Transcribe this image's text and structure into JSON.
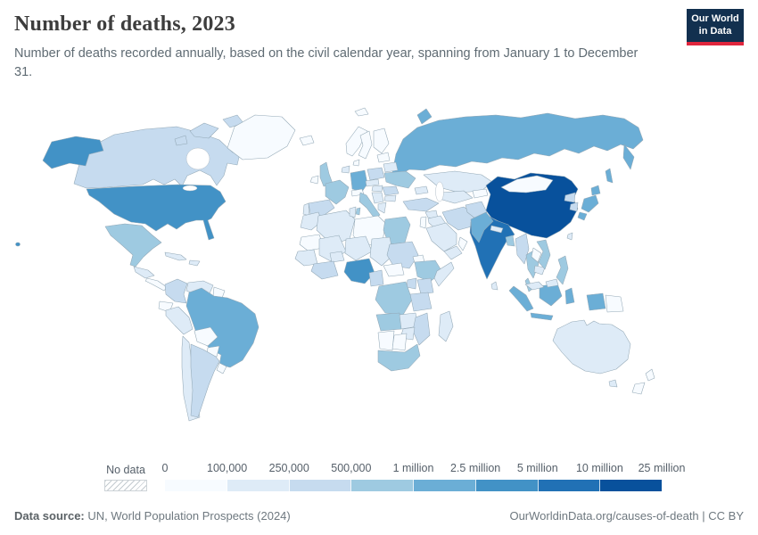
{
  "header": {
    "title": "Number of deaths, 2023",
    "subtitle": "Number of deaths recorded annually, based on the civil calendar year, spanning from January 1 to December 31."
  },
  "logo": {
    "line1": "Our World",
    "line2": "in Data",
    "bg_color": "#12304f",
    "accent_color": "#e0263d"
  },
  "legend": {
    "no_data_label": "No data",
    "tick_labels": [
      "0",
      "100,000",
      "250,000",
      "500,000",
      "1 million",
      "2.5 million",
      "5 million",
      "10 million",
      "25 million"
    ]
  },
  "footer": {
    "source_label": "Data source:",
    "source_value": " UN, World Population Prospects (2024)",
    "credit": "OurWorldinData.org/causes-of-death | CC BY"
  },
  "chart_data": {
    "type": "choropleth_map",
    "title": "Number of deaths, 2023",
    "unit": "deaths per year",
    "bin_edges": [
      "0",
      "100,000",
      "250,000",
      "500,000",
      "1 million",
      "2.5 million",
      "5 million",
      "10 million",
      "25 million"
    ],
    "colors": [
      "#f7fbff",
      "#deebf7",
      "#c6dbef",
      "#9ecae1",
      "#6baed6",
      "#4292c6",
      "#2171b5",
      "#08519c"
    ],
    "border_color": "#93a8b6",
    "no_data_style": "white with gray diagonal hatch",
    "countries": {
      "united-states": {
        "name": "United States",
        "bin": 5
      },
      "canada": {
        "name": "Canada",
        "bin": 2
      },
      "greenland": {
        "name": "Greenland",
        "bin": 0
      },
      "mexico": {
        "name": "Mexico",
        "bin": 3
      },
      "guatemala": {
        "name": "Guatemala",
        "bin": 1
      },
      "central-america": {
        "name": "Central America",
        "bin": 0
      },
      "cuba": {
        "name": "Cuba",
        "bin": 1
      },
      "hispaniola": {
        "name": "Haiti & Dominican Republic",
        "bin": 1
      },
      "colombia": {
        "name": "Colombia",
        "bin": 2
      },
      "venezuela": {
        "name": "Venezuela",
        "bin": 1
      },
      "guyana": {
        "name": "Guyanas",
        "bin": 0
      },
      "ecuador": {
        "name": "Ecuador",
        "bin": 0
      },
      "peru": {
        "name": "Peru",
        "bin": 1
      },
      "brazil": {
        "name": "Brazil",
        "bin": 4
      },
      "bolivia": {
        "name": "Bolivia",
        "bin": 0
      },
      "paraguay": {
        "name": "Paraguay",
        "bin": 0
      },
      "chile": {
        "name": "Chile",
        "bin": 1
      },
      "argentina": {
        "name": "Argentina",
        "bin": 2
      },
      "uruguay": {
        "name": "Uruguay",
        "bin": 0
      },
      "iceland": {
        "name": "Iceland",
        "bin": 0
      },
      "svalbard": {
        "name": "Svalbard",
        "bin": 0
      },
      "united-kingdom": {
        "name": "United Kingdom",
        "bin": 3
      },
      "ireland": {
        "name": "Ireland",
        "bin": 0
      },
      "norway": {
        "name": "Norway",
        "bin": 0
      },
      "sweden": {
        "name": "Sweden",
        "bin": 0
      },
      "finland": {
        "name": "Finland",
        "bin": 0
      },
      "denmark": {
        "name": "Denmark",
        "bin": 0
      },
      "benelux": {
        "name": "Netherlands & Belgium",
        "bin": 1
      },
      "germany": {
        "name": "Germany",
        "bin": 4
      },
      "france": {
        "name": "France",
        "bin": 3
      },
      "spain": {
        "name": "Spain",
        "bin": 2
      },
      "portugal": {
        "name": "Portugal",
        "bin": 1
      },
      "italy": {
        "name": "Italy",
        "bin": 3
      },
      "switzerland-austria": {
        "name": "Switzerland & Austria",
        "bin": 0
      },
      "poland": {
        "name": "Poland",
        "bin": 2
      },
      "czechia-slovakia": {
        "name": "Czechia & Slovakia",
        "bin": 1
      },
      "hungary": {
        "name": "Hungary",
        "bin": 1
      },
      "balkans": {
        "name": "Balkans",
        "bin": 1
      },
      "greece": {
        "name": "Greece",
        "bin": 1
      },
      "romania": {
        "name": "Romania",
        "bin": 2
      },
      "bulgaria": {
        "name": "Bulgaria",
        "bin": 1
      },
      "ukraine": {
        "name": "Ukraine",
        "bin": 3
      },
      "belarus": {
        "name": "Belarus",
        "bin": 1
      },
      "baltics": {
        "name": "Baltic states",
        "bin": 0
      },
      "russia": {
        "name": "Russia",
        "bin": 4
      },
      "kazakhstan": {
        "name": "Kazakhstan",
        "bin": 1
      },
      "uzbekistan-turkmenistan": {
        "name": "Uzbekistan & Turkmenistan",
        "bin": 1
      },
      "kyrgyzstan-tajikistan": {
        "name": "Kyrgyzstan & Tajikistan",
        "bin": 0
      },
      "caucasus": {
        "name": "Caucasus",
        "bin": 1
      },
      "turkey": {
        "name": "Turkey",
        "bin": 2
      },
      "syria": {
        "name": "Syria",
        "bin": 1
      },
      "iraq": {
        "name": "Iraq",
        "bin": 1
      },
      "israel-jordan": {
        "name": "Israel & Jordan",
        "bin": 0
      },
      "saudi-arabia": {
        "name": "Saudi Arabia",
        "bin": 1
      },
      "yemen": {
        "name": "Yemen",
        "bin": 1
      },
      "oman": {
        "name": "Oman",
        "bin": 0
      },
      "iran": {
        "name": "Iran",
        "bin": 2
      },
      "afghanistan": {
        "name": "Afghanistan",
        "bin": 2
      },
      "pakistan": {
        "name": "Pakistan",
        "bin": 4
      },
      "morocco": {
        "name": "Morocco",
        "bin": 1
      },
      "algeria": {
        "name": "Algeria",
        "bin": 1
      },
      "tunisia": {
        "name": "Tunisia",
        "bin": 1
      },
      "libya": {
        "name": "Libya",
        "bin": 0
      },
      "egypt": {
        "name": "Egypt",
        "bin": 3
      },
      "mauritania": {
        "name": "Mauritania",
        "bin": 0
      },
      "mali": {
        "name": "Mali",
        "bin": 1
      },
      "niger": {
        "name": "Niger",
        "bin": 1
      },
      "chad": {
        "name": "Chad",
        "bin": 1
      },
      "sudan": {
        "name": "Sudan",
        "bin": 2
      },
      "eritrea-djibouti": {
        "name": "Eritrea & Djibouti",
        "bin": 0
      },
      "senegal-guinea": {
        "name": "Senegal & Guinea",
        "bin": 1
      },
      "cote-divoire-ghana": {
        "name": "Côte d'Ivoire & Ghana",
        "bin": 2
      },
      "burkina-faso": {
        "name": "Burkina Faso",
        "bin": 1
      },
      "nigeria": {
        "name": "Nigeria",
        "bin": 5
      },
      "cameroon": {
        "name": "Cameroon",
        "bin": 2
      },
      "central-african-republic": {
        "name": "Central African Republic",
        "bin": 0
      },
      "ethiopia": {
        "name": "Ethiopia",
        "bin": 3
      },
      "somalia": {
        "name": "Somalia",
        "bin": 1
      },
      "kenya": {
        "name": "Kenya",
        "bin": 2
      },
      "uganda": {
        "name": "Uganda",
        "bin": 2
      },
      "democratic-republic-of-congo": {
        "name": "Democratic Republic of Congo",
        "bin": 3
      },
      "tanzania": {
        "name": "Tanzania",
        "bin": 2
      },
      "angola": {
        "name": "Angola",
        "bin": 3
      },
      "zambia": {
        "name": "Zambia",
        "bin": 1
      },
      "mozambique": {
        "name": "Mozambique",
        "bin": 2
      },
      "zimbabwe": {
        "name": "Zimbabwe",
        "bin": 1
      },
      "namibia": {
        "name": "Namibia",
        "bin": 0
      },
      "botswana": {
        "name": "Botswana",
        "bin": 0
      },
      "south-africa": {
        "name": "South Africa",
        "bin": 3
      },
      "madagascar": {
        "name": "Madagascar",
        "bin": 1
      },
      "india": {
        "name": "India",
        "bin": 6
      },
      "nepal": {
        "name": "Nepal",
        "bin": 1
      },
      "bangladesh": {
        "name": "Bangladesh",
        "bin": 3
      },
      "sri-lanka": {
        "name": "Sri Lanka",
        "bin": 1
      },
      "china": {
        "name": "China",
        "bin": 7
      },
      "mongolia": {
        "name": "Mongolia",
        "bin": 0
      },
      "taiwan": {
        "name": "Taiwan",
        "bin": 1
      },
      "myanmar": {
        "name": "Myanmar",
        "bin": 2
      },
      "thailand": {
        "name": "Thailand",
        "bin": 3
      },
      "laos": {
        "name": "Laos",
        "bin": 0
      },
      "cambodia": {
        "name": "Cambodia",
        "bin": 1
      },
      "vietnam": {
        "name": "Vietnam",
        "bin": 3
      },
      "south-korea": {
        "name": "South Korea",
        "bin": 2
      },
      "north-korea": {
        "name": "North Korea",
        "bin": 2
      },
      "japan": {
        "name": "Japan",
        "bin": 4
      },
      "philippines": {
        "name": "Philippines",
        "bin": 3
      },
      "malaysia": {
        "name": "Malaysia",
        "bin": 1
      },
      "indonesia": {
        "name": "Indonesia",
        "bin": 4
      },
      "papua-new-guinea": {
        "name": "Papua New Guinea",
        "bin": 0
      },
      "australia": {
        "name": "Australia",
        "bin": 1
      },
      "new-zealand": {
        "name": "New Zealand",
        "bin": 0
      }
    }
  }
}
